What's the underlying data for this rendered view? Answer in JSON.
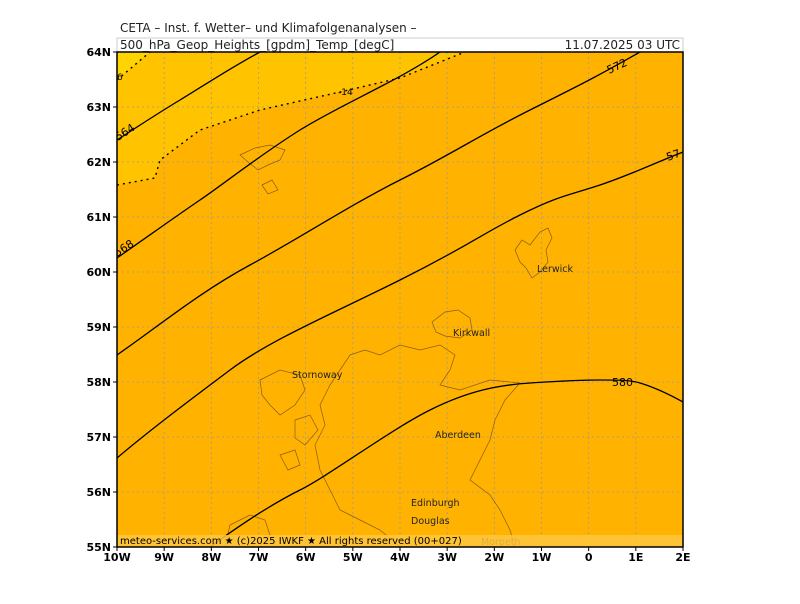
{
  "header": {
    "institute": "CETA – Inst. f. Wetter– und Klimafolgenanalysen –",
    "field": "500_hPa_Geop_Heights_[gpdm]_Temp_[degC]",
    "valid_time": "11.07.2025 03 UTC"
  },
  "axes": {
    "lat_labels": [
      "64N",
      "63N",
      "62N",
      "61N",
      "60N",
      "59N",
      "58N",
      "57N",
      "56N",
      "55N"
    ],
    "lon_labels": [
      "10W",
      "9W",
      "8W",
      "7W",
      "6W",
      "5W",
      "4W",
      "3W",
      "2W",
      "1W",
      "0",
      "1E",
      "2E"
    ]
  },
  "contour_labels": {
    "height": [
      "564",
      "568",
      "572",
      "57",
      "580"
    ],
    "temperature": [
      "-14",
      "6"
    ]
  },
  "places": [
    "Lerwick",
    "Kirkwall",
    "Stornoway",
    "Aberdeen",
    "Edinburgh",
    "Douglas",
    "Morpeth"
  ],
  "footer": "meteo-services.com ★ (c)2025 IWKF ★ All rights reserved (00+027)"
}
